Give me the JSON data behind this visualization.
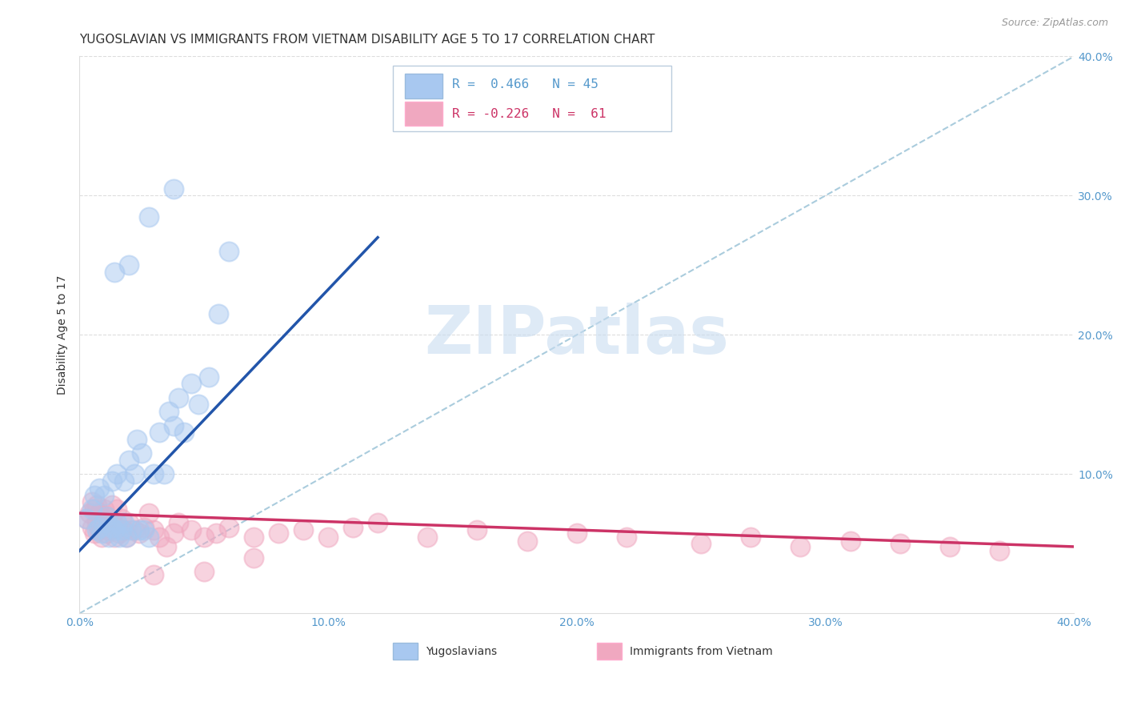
{
  "title": "YUGOSLAVIAN VS IMMIGRANTS FROM VIETNAM DISABILITY AGE 5 TO 17 CORRELATION CHART",
  "source": "Source: ZipAtlas.com",
  "ylabel": "Disability Age 5 to 17",
  "xlim": [
    0.0,
    0.4
  ],
  "ylim": [
    0.0,
    0.4
  ],
  "xticks": [
    0.0,
    0.1,
    0.2,
    0.3,
    0.4
  ],
  "yticks": [
    0.1,
    0.2,
    0.3,
    0.4
  ],
  "xticklabels": [
    "0.0%",
    "10.0%",
    "20.0%",
    "30.0%",
    "40.0%"
  ],
  "yticklabels": [
    "10.0%",
    "20.0%",
    "30.0%",
    "40.0%"
  ],
  "blue_color": "#A8C8F0",
  "pink_color": "#F0A8C0",
  "blue_line_color": "#2255AA",
  "pink_line_color": "#CC3366",
  "diagonal_color": "#AACCDD",
  "watermark_color": "#C8DCF0",
  "tick_color": "#5599CC",
  "grid_color": "#DDDDDD",
  "title_color": "#333333",
  "ylabel_color": "#333333",
  "source_color": "#999999",
  "title_fontsize": 11,
  "axis_label_fontsize": 10,
  "tick_fontsize": 10,
  "legend_r1": "R =  0.466",
  "legend_n1": "N = 45",
  "legend_r2": "R = -0.226",
  "legend_n2": "N =  61",
  "blue_line_x0": 0.0,
  "blue_line_y0": 0.045,
  "blue_line_x1": 0.12,
  "blue_line_y1": 0.27,
  "pink_line_x0": 0.0,
  "pink_line_x1": 0.4,
  "pink_line_y0": 0.072,
  "pink_line_y1": 0.048,
  "yug_x": [
    0.003,
    0.005,
    0.006,
    0.007,
    0.008,
    0.008,
    0.009,
    0.01,
    0.01,
    0.011,
    0.012,
    0.013,
    0.013,
    0.014,
    0.015,
    0.015,
    0.016,
    0.017,
    0.018,
    0.018,
    0.019,
    0.02,
    0.021,
    0.022,
    0.023,
    0.024,
    0.025,
    0.026,
    0.028,
    0.03,
    0.032,
    0.034,
    0.036,
    0.038,
    0.04,
    0.042,
    0.045,
    0.048,
    0.052,
    0.056,
    0.014,
    0.02,
    0.028,
    0.038,
    0.06
  ],
  "yug_y": [
    0.068,
    0.075,
    0.085,
    0.06,
    0.062,
    0.09,
    0.058,
    0.065,
    0.085,
    0.07,
    0.055,
    0.062,
    0.095,
    0.06,
    0.065,
    0.1,
    0.055,
    0.06,
    0.065,
    0.095,
    0.055,
    0.11,
    0.06,
    0.1,
    0.125,
    0.06,
    0.115,
    0.06,
    0.055,
    0.1,
    0.13,
    0.1,
    0.145,
    0.135,
    0.155,
    0.13,
    0.165,
    0.15,
    0.17,
    0.215,
    0.245,
    0.25,
    0.285,
    0.305,
    0.26
  ],
  "viet_x": [
    0.003,
    0.004,
    0.005,
    0.005,
    0.006,
    0.006,
    0.007,
    0.007,
    0.008,
    0.008,
    0.009,
    0.009,
    0.01,
    0.01,
    0.011,
    0.011,
    0.012,
    0.013,
    0.013,
    0.014,
    0.015,
    0.015,
    0.016,
    0.017,
    0.018,
    0.019,
    0.02,
    0.022,
    0.024,
    0.026,
    0.028,
    0.03,
    0.032,
    0.035,
    0.038,
    0.04,
    0.045,
    0.05,
    0.055,
    0.06,
    0.07,
    0.08,
    0.09,
    0.1,
    0.11,
    0.12,
    0.14,
    0.16,
    0.18,
    0.2,
    0.22,
    0.25,
    0.27,
    0.29,
    0.31,
    0.33,
    0.35,
    0.37,
    0.03,
    0.05,
    0.07
  ],
  "viet_y": [
    0.068,
    0.072,
    0.062,
    0.08,
    0.058,
    0.075,
    0.065,
    0.078,
    0.06,
    0.072,
    0.055,
    0.068,
    0.062,
    0.075,
    0.058,
    0.07,
    0.06,
    0.065,
    0.078,
    0.055,
    0.062,
    0.075,
    0.058,
    0.068,
    0.06,
    0.055,
    0.065,
    0.06,
    0.058,
    0.062,
    0.072,
    0.06,
    0.055,
    0.048,
    0.058,
    0.065,
    0.06,
    0.055,
    0.058,
    0.062,
    0.055,
    0.058,
    0.06,
    0.055,
    0.062,
    0.065,
    0.055,
    0.06,
    0.052,
    0.058,
    0.055,
    0.05,
    0.055,
    0.048,
    0.052,
    0.05,
    0.048,
    0.045,
    0.028,
    0.03,
    0.04
  ]
}
